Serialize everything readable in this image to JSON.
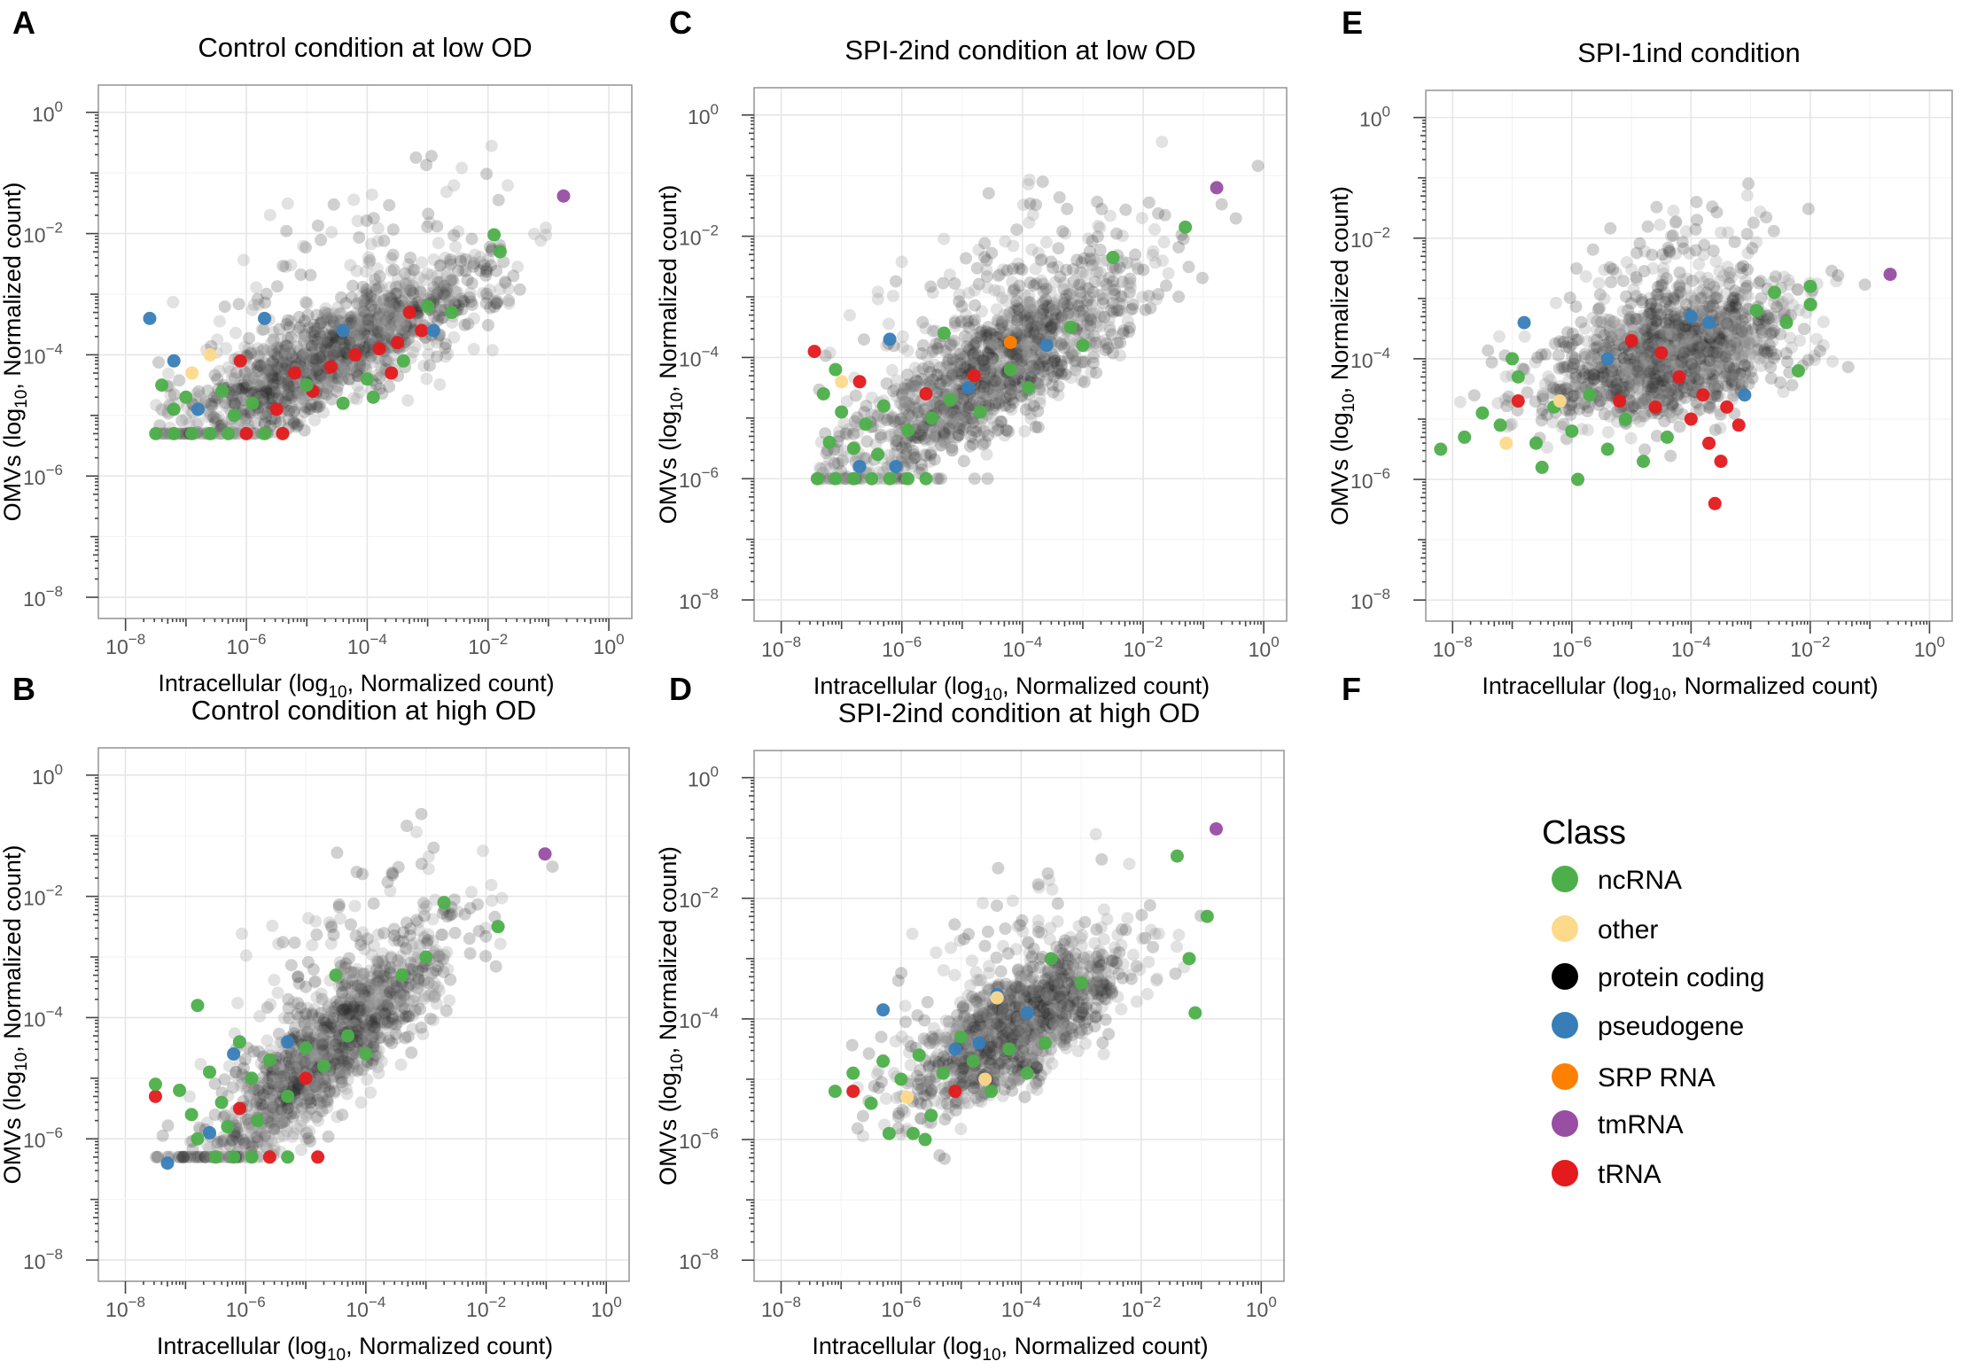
{
  "chart_data": [
    {
      "type": "scatter",
      "panel_label": "A",
      "title": "Control condition at low OD",
      "xlabel": {
        "pre": "Intracellular (log",
        "sub": "10",
        "post": ", Normalized count)"
      },
      "ylabel": {
        "pre": "OMVs (log",
        "sub": "10",
        "post": ", Normalized count)"
      },
      "xscale": "log10",
      "yscale": "log10",
      "xlim": [
        -8.45,
        0.38
      ],
      "ylim": [
        -8.35,
        0.45
      ],
      "x_ticks": [
        -8,
        -6,
        -4,
        -2,
        0
      ],
      "y_ticks": [
        -8,
        -6,
        -4,
        -2,
        0
      ],
      "grid": true,
      "cloud": {
        "class": "protein coding",
        "n": 1400,
        "x_center": -4.6,
        "x_spread": 1.3,
        "slope": 0.5,
        "y_center": -4.0,
        "y_spread": 0.42,
        "x_min": -7.5,
        "y_floor": -5.3,
        "seed": 11
      },
      "points": [
        [
          -0.75,
          -1.38,
          "tmRNA"
        ],
        [
          -1.9,
          -2.02,
          "ncRNA"
        ],
        [
          -1.8,
          -2.3,
          "ncRNA"
        ],
        [
          -3.0,
          -3.2,
          "ncRNA"
        ],
        [
          -2.6,
          -3.3,
          "ncRNA"
        ],
        [
          -3.3,
          -3.3,
          "tRNA"
        ],
        [
          -3.1,
          -3.6,
          "tRNA"
        ],
        [
          -3.5,
          -3.8,
          "tRNA"
        ],
        [
          -3.8,
          -3.9,
          "tRNA"
        ],
        [
          -4.2,
          -4.0,
          "tRNA"
        ],
        [
          -3.6,
          -4.3,
          "tRNA"
        ],
        [
          -4.6,
          -4.2,
          "tRNA"
        ],
        [
          -5.2,
          -4.3,
          "tRNA"
        ],
        [
          -6.1,
          -4.1,
          "tRNA"
        ],
        [
          -4.9,
          -4.6,
          "tRNA"
        ],
        [
          -5.5,
          -4.9,
          "tRNA"
        ],
        [
          -7.6,
          -3.4,
          "pseudogene"
        ],
        [
          -5.7,
          -3.4,
          "pseudogene"
        ],
        [
          -4.4,
          -3.6,
          "pseudogene"
        ],
        [
          -7.2,
          -4.1,
          "pseudogene"
        ],
        [
          -2.9,
          -3.6,
          "pseudogene"
        ],
        [
          -6.8,
          -4.9,
          "pseudogene"
        ],
        [
          -6.6,
          -4.0,
          "other"
        ],
        [
          -6.9,
          -4.3,
          "other"
        ],
        [
          -7.4,
          -4.5,
          "ncRNA"
        ],
        [
          -7.0,
          -4.7,
          "ncRNA"
        ],
        [
          -6.4,
          -4.6,
          "ncRNA"
        ],
        [
          -5.9,
          -4.8,
          "ncRNA"
        ],
        [
          -5.0,
          -4.5,
          "ncRNA"
        ],
        [
          -4.4,
          -4.8,
          "ncRNA"
        ],
        [
          -4.0,
          -4.4,
          "ncRNA"
        ],
        [
          -3.4,
          -4.1,
          "ncRNA"
        ],
        [
          -3.9,
          -4.7,
          "ncRNA"
        ],
        [
          -7.2,
          -4.9,
          "ncRNA"
        ],
        [
          -6.2,
          -5.0,
          "ncRNA"
        ],
        [
          -7.5,
          -5.3,
          "ncRNA"
        ],
        [
          -7.2,
          -5.3,
          "ncRNA"
        ],
        [
          -6.9,
          -5.3,
          "ncRNA"
        ],
        [
          -6.6,
          -5.3,
          "ncRNA"
        ],
        [
          -6.3,
          -5.3,
          "ncRNA"
        ],
        [
          -6.0,
          -5.3,
          "tRNA"
        ],
        [
          -5.7,
          -5.3,
          "ncRNA"
        ],
        [
          -5.4,
          -5.3,
          "tRNA"
        ]
      ]
    },
    {
      "type": "scatter",
      "panel_label": "C",
      "title": "SPI-2ind condition at low OD",
      "xlabel": {
        "pre": "Intracellular (log",
        "sub": "10",
        "post": ", Normalized count)"
      },
      "ylabel": {
        "pre": "OMVs (log",
        "sub": "10",
        "post": ", Normalized count)"
      },
      "xscale": "log10",
      "yscale": "log10",
      "xlim": [
        -8.45,
        0.38
      ],
      "ylim": [
        -8.35,
        0.45
      ],
      "x_ticks": [
        -8,
        -6,
        -4,
        -2,
        0
      ],
      "y_ticks": [
        -8,
        -6,
        -4,
        -2,
        0
      ],
      "grid": true,
      "cloud": {
        "class": "protein coding",
        "n": 1400,
        "x_center": -4.5,
        "x_spread": 1.25,
        "slope": 0.6,
        "y_center": -4.2,
        "y_spread": 0.55,
        "x_min": -7.45,
        "y_floor": -6.0,
        "seed": 23
      },
      "points": [
        [
          -0.78,
          -1.2,
          "tmRNA"
        ],
        [
          -1.3,
          -1.85,
          "ncRNA"
        ],
        [
          -2.5,
          -2.35,
          "ncRNA"
        ],
        [
          -4.2,
          -3.75,
          "SRP RNA"
        ],
        [
          -3.2,
          -3.5,
          "ncRNA"
        ],
        [
          -3.0,
          -3.8,
          "ncRNA"
        ],
        [
          -7.45,
          -3.9,
          "tRNA"
        ],
        [
          -5.3,
          -3.6,
          "ncRNA"
        ],
        [
          -6.2,
          -3.7,
          "pseudogene"
        ],
        [
          -3.6,
          -3.8,
          "pseudogene"
        ],
        [
          -4.9,
          -4.5,
          "pseudogene"
        ],
        [
          -6.7,
          -5.8,
          "pseudogene"
        ],
        [
          -6.1,
          -5.8,
          "pseudogene"
        ],
        [
          -6.7,
          -4.4,
          "tRNA"
        ],
        [
          -5.6,
          -4.6,
          "tRNA"
        ],
        [
          -4.8,
          -4.3,
          "tRNA"
        ],
        [
          -7.3,
          -4.6,
          "ncRNA"
        ],
        [
          -7.0,
          -4.9,
          "ncRNA"
        ],
        [
          -6.6,
          -5.1,
          "ncRNA"
        ],
        [
          -6.3,
          -4.8,
          "ncRNA"
        ],
        [
          -5.9,
          -5.2,
          "ncRNA"
        ],
        [
          -5.5,
          -5.0,
          "ncRNA"
        ],
        [
          -5.2,
          -4.7,
          "ncRNA"
        ],
        [
          -4.7,
          -4.9,
          "ncRNA"
        ],
        [
          -4.2,
          -4.2,
          "ncRNA"
        ],
        [
          -3.9,
          -4.5,
          "ncRNA"
        ],
        [
          -7.2,
          -5.4,
          "ncRNA"
        ],
        [
          -6.8,
          -5.5,
          "ncRNA"
        ],
        [
          -6.4,
          -5.6,
          "ncRNA"
        ],
        [
          -7.1,
          -4.2,
          "ncRNA"
        ],
        [
          -7.0,
          -4.4,
          "other"
        ],
        [
          -7.4,
          -6.0,
          "ncRNA"
        ],
        [
          -7.1,
          -6.0,
          "ncRNA"
        ],
        [
          -6.8,
          -6.0,
          "ncRNA"
        ],
        [
          -6.5,
          -6.0,
          "ncRNA"
        ],
        [
          -6.2,
          -6.0,
          "ncRNA"
        ],
        [
          -5.9,
          -6.0,
          "ncRNA"
        ],
        [
          -5.6,
          -6.0,
          "ncRNA"
        ]
      ]
    },
    {
      "type": "scatter",
      "panel_label": "E",
      "title": "SPI-1ind condition",
      "xlabel": {
        "pre": "Intracellular (log",
        "sub": "10",
        "post": ", Normalized count)"
      },
      "ylabel": {
        "pre": "OMVs (log",
        "sub": "10",
        "post": ", Normalized count)"
      },
      "xscale": "log10",
      "yscale": "log10",
      "xlim": [
        -8.45,
        0.38
      ],
      "ylim": [
        -8.35,
        0.45
      ],
      "x_ticks": [
        -8,
        -6,
        -4,
        -2,
        0
      ],
      "y_ticks": [
        -8,
        -6,
        -4,
        -2,
        0
      ],
      "grid": true,
      "cloud": {
        "class": "protein coding",
        "n": 1500,
        "x_center": -4.3,
        "x_spread": 1.0,
        "slope": 0.25,
        "y_center": -3.95,
        "y_spread": 0.5,
        "x_min": -8.2,
        "y_floor": -7.0,
        "seed": 37
      },
      "points": [
        [
          -0.66,
          -2.6,
          "tmRNA"
        ],
        [
          -2.6,
          -2.9,
          "ncRNA"
        ],
        [
          -2.0,
          -2.8,
          "ncRNA"
        ],
        [
          -2.0,
          -3.1,
          "ncRNA"
        ],
        [
          -2.9,
          -3.2,
          "ncRNA"
        ],
        [
          -2.4,
          -3.4,
          "ncRNA"
        ],
        [
          -2.2,
          -4.2,
          "ncRNA"
        ],
        [
          -6.8,
          -3.4,
          "pseudogene"
        ],
        [
          -4.0,
          -3.3,
          "pseudogene"
        ],
        [
          -3.7,
          -3.4,
          "pseudogene"
        ],
        [
          -5.4,
          -4.0,
          "pseudogene"
        ],
        [
          -3.1,
          -4.6,
          "pseudogene"
        ],
        [
          -5.0,
          -3.7,
          "tRNA"
        ],
        [
          -4.5,
          -3.9,
          "tRNA"
        ],
        [
          -4.2,
          -4.3,
          "tRNA"
        ],
        [
          -3.8,
          -4.6,
          "tRNA"
        ],
        [
          -3.4,
          -4.8,
          "tRNA"
        ],
        [
          -3.2,
          -5.1,
          "tRNA"
        ],
        [
          -3.7,
          -5.4,
          "tRNA"
        ],
        [
          -4.6,
          -4.8,
          "tRNA"
        ],
        [
          -5.2,
          -4.7,
          "tRNA"
        ],
        [
          -3.5,
          -5.7,
          "tRNA"
        ],
        [
          -3.6,
          -6.4,
          "tRNA"
        ],
        [
          -6.9,
          -4.7,
          "tRNA"
        ],
        [
          -4.0,
          -5.0,
          "tRNA"
        ],
        [
          -8.2,
          -5.5,
          "ncRNA"
        ],
        [
          -7.8,
          -5.3,
          "ncRNA"
        ],
        [
          -7.5,
          -4.9,
          "ncRNA"
        ],
        [
          -7.2,
          -5.1,
          "ncRNA"
        ],
        [
          -6.9,
          -4.3,
          "ncRNA"
        ],
        [
          -6.6,
          -5.4,
          "ncRNA"
        ],
        [
          -6.3,
          -4.8,
          "ncRNA"
        ],
        [
          -6.0,
          -5.2,
          "ncRNA"
        ],
        [
          -5.7,
          -4.6,
          "ncRNA"
        ],
        [
          -5.4,
          -5.5,
          "ncRNA"
        ],
        [
          -5.1,
          -5.0,
          "ncRNA"
        ],
        [
          -4.8,
          -5.7,
          "ncRNA"
        ],
        [
          -5.9,
          -6.0,
          "ncRNA"
        ],
        [
          -6.5,
          -5.8,
          "ncRNA"
        ],
        [
          -4.4,
          -5.3,
          "ncRNA"
        ],
        [
          -7.0,
          -4.0,
          "ncRNA"
        ],
        [
          -6.2,
          -4.7,
          "other"
        ],
        [
          -7.1,
          -5.4,
          "other"
        ]
      ]
    },
    {
      "type": "scatter",
      "panel_label": "B",
      "title": "Control condition at high OD",
      "xlabel": {
        "pre": "Intracellular (log",
        "sub": "10",
        "post": ", Normalized count)"
      },
      "ylabel": {
        "pre": "OMVs (log",
        "sub": "10",
        "post": ", Normalized count)"
      },
      "xscale": "log10",
      "yscale": "log10",
      "xlim": [
        -8.45,
        0.38
      ],
      "ylim": [
        -8.35,
        0.45
      ],
      "x_ticks": [
        -8,
        -6,
        -4,
        -2,
        0
      ],
      "y_ticks": [
        -8,
        -6,
        -4,
        -2,
        0
      ],
      "grid": true,
      "cloud": {
        "class": "protein coding",
        "n": 1400,
        "x_center": -4.6,
        "x_spread": 1.0,
        "slope": 0.85,
        "y_center": -4.5,
        "y_spread": 0.5,
        "x_min": -7.5,
        "y_floor": -6.3,
        "seed": 51
      },
      "points": [
        [
          -1.02,
          -1.3,
          "tmRNA"
        ],
        [
          -2.7,
          -2.1,
          "ncRNA"
        ],
        [
          -1.8,
          -2.5,
          "ncRNA"
        ],
        [
          -3.0,
          -3.0,
          "ncRNA"
        ],
        [
          -3.4,
          -3.3,
          "ncRNA"
        ],
        [
          -4.5,
          -3.3,
          "ncRNA"
        ],
        [
          -7.3,
          -6.4,
          "pseudogene"
        ],
        [
          -6.2,
          -4.6,
          "pseudogene"
        ],
        [
          -5.3,
          -4.4,
          "pseudogene"
        ],
        [
          -6.6,
          -5.9,
          "pseudogene"
        ],
        [
          -7.5,
          -5.3,
          "tRNA"
        ],
        [
          -6.1,
          -5.5,
          "tRNA"
        ],
        [
          -5.0,
          -5.0,
          "tRNA"
        ],
        [
          -5.6,
          -6.3,
          "tRNA"
        ],
        [
          -4.8,
          -6.3,
          "tRNA"
        ],
        [
          -7.5,
          -5.1,
          "ncRNA"
        ],
        [
          -7.1,
          -5.2,
          "ncRNA"
        ],
        [
          -6.8,
          -3.8,
          "ncRNA"
        ],
        [
          -6.6,
          -4.9,
          "ncRNA"
        ],
        [
          -6.4,
          -5.4,
          "ncRNA"
        ],
        [
          -6.1,
          -4.4,
          "ncRNA"
        ],
        [
          -5.9,
          -5.0,
          "ncRNA"
        ],
        [
          -5.6,
          -4.7,
          "ncRNA"
        ],
        [
          -5.3,
          -5.3,
          "ncRNA"
        ],
        [
          -5.0,
          -4.5,
          "ncRNA"
        ],
        [
          -4.7,
          -4.8,
          "ncRNA"
        ],
        [
          -4.3,
          -4.3,
          "ncRNA"
        ],
        [
          -4.0,
          -4.6,
          "ncRNA"
        ],
        [
          -6.3,
          -5.8,
          "ncRNA"
        ],
        [
          -5.8,
          -5.7,
          "ncRNA"
        ],
        [
          -6.9,
          -5.6,
          "ncRNA"
        ],
        [
          -6.5,
          -6.3,
          "ncRNA"
        ],
        [
          -6.2,
          -6.3,
          "ncRNA"
        ],
        [
          -5.9,
          -6.3,
          "ncRNA"
        ],
        [
          -5.3,
          -6.3,
          "ncRNA"
        ],
        [
          -6.8,
          -6.0,
          "ncRNA"
        ]
      ]
    },
    {
      "type": "scatter",
      "panel_label": "D",
      "title": "SPI-2ind condition at high OD",
      "xlabel": {
        "pre": "Intracellular (log",
        "sub": "10",
        "post": ", Normalized count)"
      },
      "ylabel": {
        "pre": "OMVs (log",
        "sub": "10",
        "post": ", Normalized count)"
      },
      "xscale": "log10",
      "yscale": "log10",
      "xlim": [
        -8.45,
        0.38
      ],
      "ylim": [
        -8.35,
        0.45
      ],
      "x_ticks": [
        -8,
        -6,
        -4,
        -2,
        0
      ],
      "y_ticks": [
        -8,
        -6,
        -4,
        -2,
        0
      ],
      "grid": true,
      "cloud": {
        "class": "protein coding",
        "n": 1300,
        "x_center": -4.1,
        "x_spread": 0.9,
        "slope": 0.55,
        "y_center": -4.15,
        "y_spread": 0.45,
        "x_min": -7.0,
        "y_floor": -6.5,
        "seed": 67
      },
      "points": [
        [
          -0.75,
          -0.85,
          "tmRNA"
        ],
        [
          -1.4,
          -1.3,
          "ncRNA"
        ],
        [
          -0.9,
          -2.3,
          "ncRNA"
        ],
        [
          -1.2,
          -3.0,
          "ncRNA"
        ],
        [
          -1.1,
          -3.9,
          "ncRNA"
        ],
        [
          -3.5,
          -3.0,
          "ncRNA"
        ],
        [
          -3.0,
          -3.4,
          "ncRNA"
        ],
        [
          -6.3,
          -3.85,
          "pseudogene"
        ],
        [
          -4.4,
          -3.6,
          "pseudogene"
        ],
        [
          -3.9,
          -3.9,
          "pseudogene"
        ],
        [
          -5.1,
          -4.5,
          "pseudogene"
        ],
        [
          -4.7,
          -4.4,
          "pseudogene"
        ],
        [
          -4.4,
          -3.65,
          "other"
        ],
        [
          -5.9,
          -5.3,
          "other"
        ],
        [
          -4.6,
          -5.0,
          "other"
        ],
        [
          -6.8,
          -5.2,
          "tRNA"
        ],
        [
          -5.1,
          -5.2,
          "tRNA"
        ],
        [
          -7.1,
          -5.2,
          "ncRNA"
        ],
        [
          -6.8,
          -4.9,
          "ncRNA"
        ],
        [
          -6.5,
          -5.4,
          "ncRNA"
        ],
        [
          -6.3,
          -4.7,
          "ncRNA"
        ],
        [
          -6.0,
          -5.0,
          "ncRNA"
        ],
        [
          -5.7,
          -4.6,
          "ncRNA"
        ],
        [
          -5.5,
          -5.6,
          "ncRNA"
        ],
        [
          -5.3,
          -4.9,
          "ncRNA"
        ],
        [
          -5.0,
          -4.3,
          "ncRNA"
        ],
        [
          -4.8,
          -4.7,
          "ncRNA"
        ],
        [
          -4.5,
          -5.2,
          "ncRNA"
        ],
        [
          -4.2,
          -4.5,
          "ncRNA"
        ],
        [
          -3.9,
          -4.9,
          "ncRNA"
        ],
        [
          -3.6,
          -4.4,
          "ncRNA"
        ],
        [
          -5.8,
          -5.9,
          "ncRNA"
        ],
        [
          -5.6,
          -6.0,
          "ncRNA"
        ],
        [
          -6.2,
          -5.9,
          "ncRNA"
        ]
      ]
    }
  ],
  "empty_panel": {
    "panel_label": "F"
  },
  "legend": {
    "title": "Class",
    "items": [
      {
        "label": "ncRNA",
        "color": "#4daf4a"
      },
      {
        "label": "other",
        "color": "#fdd98b"
      },
      {
        "label": "protein coding",
        "color": "#000000"
      },
      {
        "label": "pseudogene",
        "color": "#377eb8"
      },
      {
        "label": "SRP RNA",
        "color": "#ff7f00"
      },
      {
        "label": "tmRNA",
        "color": "#984ea3"
      },
      {
        "label": "tRNA",
        "color": "#e41a1c"
      }
    ]
  }
}
